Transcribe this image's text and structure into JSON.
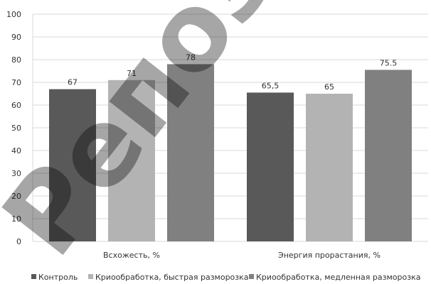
{
  "chart_data": {
    "type": "bar",
    "categories": [
      "Всхожесть, %",
      "Энергия прорастания, %"
    ],
    "series": [
      {
        "name": "Контроль",
        "values": [
          67,
          65.5
        ],
        "labels": [
          "67",
          "65,5"
        ],
        "color": "#595959"
      },
      {
        "name": "Криообработка, быстрая разморозка",
        "values": [
          71,
          65
        ],
        "labels": [
          "71",
          "65"
        ],
        "color": "#b3b3b3"
      },
      {
        "name": "Криообработка, медленная разморозка",
        "values": [
          78,
          75.5
        ],
        "labels": [
          "78",
          "75.5"
        ],
        "color": "#808080"
      }
    ],
    "ylim": [
      0,
      100
    ],
    "yticks": [
      0,
      10,
      20,
      30,
      40,
      50,
      60,
      70,
      80,
      90,
      100
    ],
    "grid": true,
    "legend_position": "bottom"
  },
  "watermark": {
    "text": "Репозиторий"
  }
}
